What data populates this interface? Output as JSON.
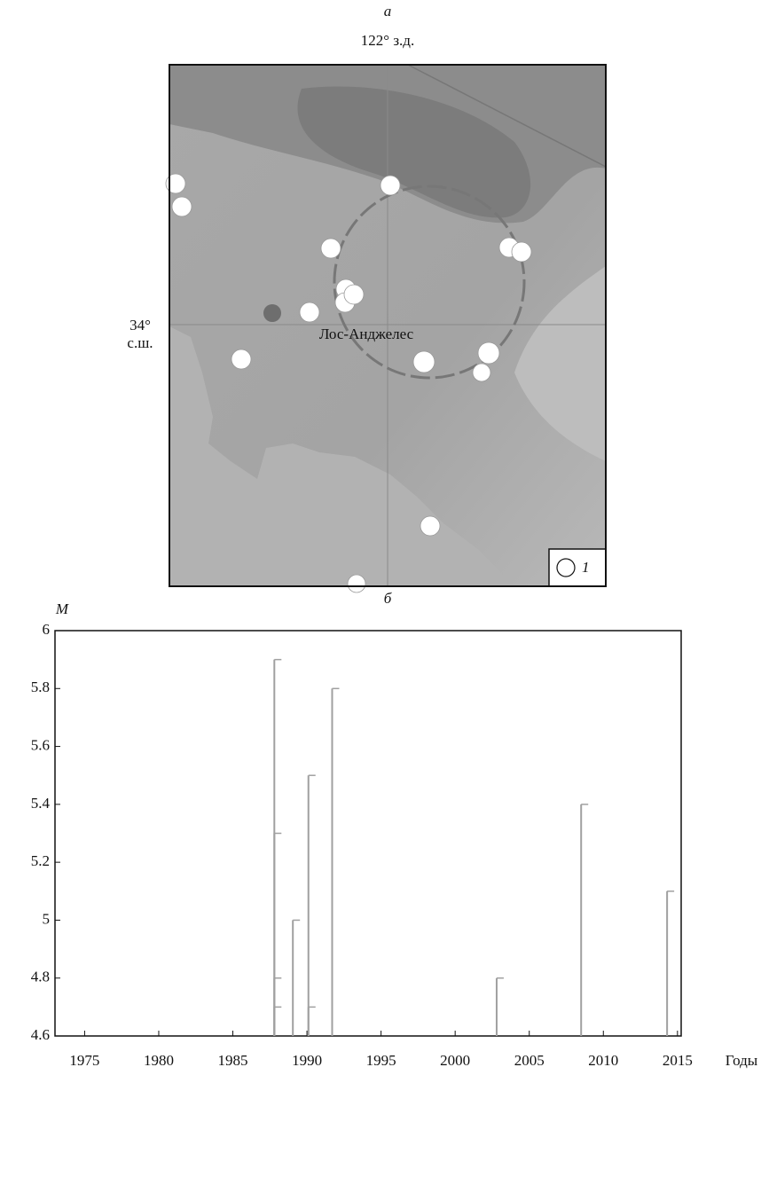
{
  "map": {
    "label": "а",
    "lon_label": "122° з.д.",
    "lat_label_deg": "34°",
    "lat_label_dir": "с.ш.",
    "city": "Лос-Анджелес",
    "legend_label": "1"
  },
  "chart_data": {
    "type": "stem",
    "label": "б",
    "ylabel": "M",
    "xlabel": "Годы",
    "x": [
      1987.8,
      1987.8,
      1987.8,
      1987.8,
      1989.05,
      1990.1,
      1990.1,
      1991.7,
      2002.8,
      2008.5,
      2014.3
    ],
    "values": [
      5.9,
      5.3,
      4.8,
      4.7,
      5.0,
      5.5,
      4.7,
      5.8,
      4.8,
      5.4,
      5.1
    ],
    "color": "#a0a0a0",
    "xlim": [
      1973,
      2015.25
    ],
    "ylim": [
      4.6,
      6
    ],
    "xticks": [
      1975,
      1980,
      1985,
      1990,
      1995,
      2000,
      2005,
      2010,
      2015
    ],
    "yticks": [
      4.6,
      4.8,
      5,
      5.2,
      5.4,
      5.6,
      5.8,
      6
    ]
  }
}
